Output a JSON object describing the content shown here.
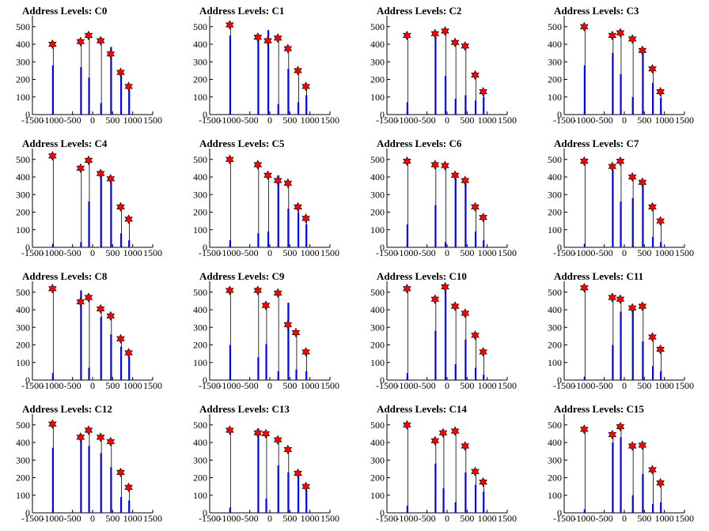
{
  "chart_data": [
    {
      "title": "Address Levels: C0",
      "type": "bar",
      "xlim": [
        -1500,
        1500
      ],
      "ylim": [
        0,
        500
      ],
      "yticks": [
        0,
        100,
        200,
        300,
        400,
        500
      ],
      "xticks": [
        -1500,
        -1000,
        -500,
        0,
        500,
        1000,
        1500
      ],
      "peaks_x": [
        -1000,
        -300,
        -100,
        200,
        450,
        700,
        900
      ],
      "peaks_y": [
        400,
        415,
        450,
        420,
        345,
        240,
        160
      ],
      "bar_heights": [
        280,
        270,
        210,
        65,
        385,
        220,
        140
      ]
    },
    {
      "title": "Address Levels: C1",
      "type": "bar",
      "xlim": [
        -1500,
        1500
      ],
      "ylim": [
        0,
        500
      ],
      "yticks": [
        0,
        100,
        200,
        300,
        400,
        500
      ],
      "xticks": [
        -1500,
        -1000,
        -500,
        0,
        500,
        1000,
        1500
      ],
      "peaks_x": [
        -1000,
        -300,
        -50,
        200,
        450,
        700,
        900
      ],
      "peaks_y": [
        510,
        440,
        420,
        435,
        375,
        250,
        160
      ],
      "bar_heights": [
        450,
        430,
        480,
        60,
        260,
        70,
        110
      ]
    },
    {
      "title": "Address Levels: C2",
      "type": "bar",
      "xlim": [
        -1500,
        1500
      ],
      "ylim": [
        0,
        500
      ],
      "yticks": [
        0,
        100,
        200,
        300,
        400,
        500
      ],
      "xticks": [
        -1500,
        -1000,
        -500,
        0,
        500,
        1000,
        1500
      ],
      "peaks_x": [
        -1000,
        -300,
        -50,
        200,
        450,
        700,
        900
      ],
      "peaks_y": [
        450,
        460,
        475,
        410,
        390,
        225,
        130
      ],
      "bar_heights": [
        70,
        440,
        220,
        90,
        110,
        80,
        100
      ]
    },
    {
      "title": "Address Levels: C3",
      "type": "bar",
      "xlim": [
        -1500,
        1500
      ],
      "ylim": [
        0,
        500
      ],
      "yticks": [
        0,
        100,
        200,
        300,
        400,
        500
      ],
      "xticks": [
        -1500,
        -1000,
        -500,
        0,
        500,
        1000,
        1500
      ],
      "peaks_x": [
        -1000,
        -300,
        -100,
        200,
        450,
        700,
        900
      ],
      "peaks_y": [
        500,
        450,
        465,
        430,
        365,
        260,
        130
      ],
      "bar_heights": [
        280,
        350,
        230,
        100,
        360,
        180,
        95
      ]
    },
    {
      "title": "Address Levels: C4",
      "type": "bar",
      "xlim": [
        -1500,
        1500
      ],
      "ylim": [
        0,
        500
      ],
      "yticks": [
        0,
        100,
        200,
        300,
        400,
        500
      ],
      "xticks": [
        -1500,
        -1000,
        -500,
        0,
        500,
        1000,
        1500
      ],
      "peaks_x": [
        -1000,
        -300,
        -100,
        200,
        450,
        700,
        900
      ],
      "peaks_y": [
        520,
        450,
        495,
        420,
        390,
        230,
        160
      ],
      "bar_heights": [
        20,
        30,
        260,
        410,
        370,
        80,
        40
      ]
    },
    {
      "title": "Address Levels: C5",
      "type": "bar",
      "xlim": [
        -1500,
        1500
      ],
      "ylim": [
        0,
        500
      ],
      "yticks": [
        0,
        100,
        200,
        300,
        400,
        500
      ],
      "xticks": [
        -1500,
        -1000,
        -500,
        0,
        500,
        1000,
        1500
      ],
      "peaks_x": [
        -1000,
        -300,
        -50,
        200,
        450,
        700,
        900
      ],
      "peaks_y": [
        500,
        470,
        410,
        380,
        365,
        230,
        165
      ],
      "bar_heights": [
        40,
        80,
        90,
        410,
        220,
        200,
        130
      ]
    },
    {
      "title": "Address Levels: C6",
      "type": "bar",
      "xlim": [
        -1500,
        1500
      ],
      "ylim": [
        0,
        500
      ],
      "yticks": [
        0,
        100,
        200,
        300,
        400,
        500
      ],
      "xticks": [
        -1500,
        -1000,
        -500,
        0,
        500,
        1000,
        1500
      ],
      "peaks_x": [
        -1000,
        -300,
        -50,
        200,
        450,
        700,
        900
      ],
      "peaks_y": [
        490,
        470,
        465,
        410,
        380,
        230,
        170
      ],
      "bar_heights": [
        130,
        240,
        30,
        390,
        360,
        90,
        40
      ]
    },
    {
      "title": "Address Levels: C7",
      "type": "bar",
      "xlim": [
        -1500,
        1500
      ],
      "ylim": [
        0,
        500
      ],
      "yticks": [
        0,
        100,
        200,
        300,
        400,
        500
      ],
      "xticks": [
        -1500,
        -1000,
        -500,
        0,
        500,
        1000,
        1500
      ],
      "peaks_x": [
        -1000,
        -300,
        -100,
        200,
        450,
        700,
        900
      ],
      "peaks_y": [
        490,
        460,
        490,
        400,
        370,
        230,
        150
      ],
      "bar_heights": [
        20,
        440,
        260,
        280,
        360,
        60,
        30
      ]
    },
    {
      "title": "Address Levels: C8",
      "type": "bar",
      "xlim": [
        -1500,
        1500
      ],
      "ylim": [
        0,
        500
      ],
      "yticks": [
        0,
        100,
        200,
        300,
        400,
        500
      ],
      "xticks": [
        -1500,
        -1000,
        -500,
        0,
        500,
        1000,
        1500
      ],
      "peaks_x": [
        -1000,
        -300,
        -100,
        200,
        450,
        700,
        900
      ],
      "peaks_y": [
        520,
        445,
        470,
        405,
        365,
        235,
        155
      ],
      "bar_heights": [
        40,
        510,
        70,
        360,
        260,
        190,
        130
      ]
    },
    {
      "title": "Address Levels: C9",
      "type": "bar",
      "xlim": [
        -1500,
        1500
      ],
      "ylim": [
        0,
        500
      ],
      "yticks": [
        0,
        100,
        200,
        300,
        400,
        500
      ],
      "xticks": [
        -1500,
        -1000,
        -500,
        0,
        500,
        1000,
        1500
      ],
      "peaks_x": [
        -1000,
        -300,
        -100,
        200,
        450,
        650,
        900
      ],
      "peaks_y": [
        510,
        510,
        425,
        495,
        315,
        270,
        160
      ],
      "bar_heights": [
        200,
        130,
        205,
        50,
        440,
        60,
        50
      ]
    },
    {
      "title": "Address Levels: C10",
      "type": "bar",
      "xlim": [
        -1500,
        1500
      ],
      "ylim": [
        0,
        500
      ],
      "yticks": [
        0,
        100,
        200,
        300,
        400,
        500
      ],
      "xticks": [
        -1500,
        -1000,
        -500,
        0,
        500,
        1000,
        1500
      ],
      "peaks_x": [
        -1000,
        -300,
        -50,
        200,
        450,
        700,
        900
      ],
      "peaks_y": [
        520,
        460,
        530,
        420,
        380,
        255,
        160
      ],
      "bar_heights": [
        40,
        280,
        510,
        90,
        230,
        70,
        30
      ]
    },
    {
      "title": "Address Levels: C11",
      "type": "bar",
      "xlim": [
        -1500,
        1500
      ],
      "ylim": [
        0,
        500
      ],
      "yticks": [
        0,
        100,
        200,
        300,
        400,
        500
      ],
      "xticks": [
        -1500,
        -1000,
        -500,
        0,
        500,
        1000,
        1500
      ],
      "peaks_x": [
        -1000,
        -300,
        -100,
        200,
        450,
        700,
        900
      ],
      "peaks_y": [
        525,
        470,
        460,
        410,
        420,
        245,
        175
      ],
      "bar_heights": [
        20,
        200,
        390,
        400,
        220,
        80,
        50
      ]
    },
    {
      "title": "Address Levels: C12",
      "type": "bar",
      "xlim": [
        -1500,
        1500
      ],
      "ylim": [
        0,
        500
      ],
      "yticks": [
        0,
        100,
        200,
        300,
        400,
        500
      ],
      "xticks": [
        -1500,
        -1000,
        -500,
        0,
        500,
        1000,
        1500
      ],
      "peaks_x": [
        -1000,
        -300,
        -100,
        200,
        450,
        700,
        900
      ],
      "peaks_y": [
        505,
        430,
        470,
        430,
        405,
        230,
        145
      ],
      "bar_heights": [
        370,
        450,
        380,
        340,
        260,
        90,
        70
      ]
    },
    {
      "title": "Address Levels: C13",
      "type": "bar",
      "xlim": [
        -1500,
        1500
      ],
      "ylim": [
        0,
        500
      ],
      "yticks": [
        0,
        100,
        200,
        300,
        400,
        500
      ],
      "xticks": [
        -1500,
        -1000,
        -500,
        0,
        500,
        1000,
        1500
      ],
      "peaks_x": [
        -1000,
        -300,
        -100,
        200,
        450,
        700,
        900
      ],
      "peaks_y": [
        470,
        455,
        450,
        415,
        360,
        225,
        150
      ],
      "bar_heights": [
        30,
        480,
        80,
        270,
        230,
        220,
        130
      ]
    },
    {
      "title": "Address Levels: C14",
      "type": "bar",
      "xlim": [
        -1500,
        1500
      ],
      "ylim": [
        0,
        500
      ],
      "yticks": [
        0,
        100,
        200,
        300,
        400,
        500
      ],
      "xticks": [
        -1500,
        -1000,
        -500,
        0,
        500,
        1000,
        1500
      ],
      "peaks_x": [
        -1000,
        -300,
        -100,
        200,
        450,
        700,
        900
      ],
      "peaks_y": [
        500,
        410,
        455,
        465,
        380,
        235,
        175
      ],
      "bar_heights": [
        40,
        280,
        140,
        60,
        230,
        160,
        120
      ]
    },
    {
      "title": "Address Levels: C15",
      "type": "bar",
      "xlim": [
        -1500,
        1500
      ],
      "ylim": [
        0,
        500
      ],
      "yticks": [
        0,
        100,
        200,
        300,
        400,
        500
      ],
      "xticks": [
        -1500,
        -1000,
        -500,
        0,
        500,
        1000,
        1500
      ],
      "peaks_x": [
        -1000,
        -300,
        -100,
        200,
        450,
        700,
        900
      ],
      "peaks_y": [
        475,
        445,
        490,
        380,
        385,
        245,
        170
      ],
      "bar_heights": [
        20,
        400,
        430,
        100,
        220,
        50,
        60
      ]
    }
  ],
  "colors": {
    "bar": "#0000ff",
    "stem": "#000000",
    "marker": "#ff0000",
    "marker_edge": "#000000",
    "axis": "#000000"
  }
}
